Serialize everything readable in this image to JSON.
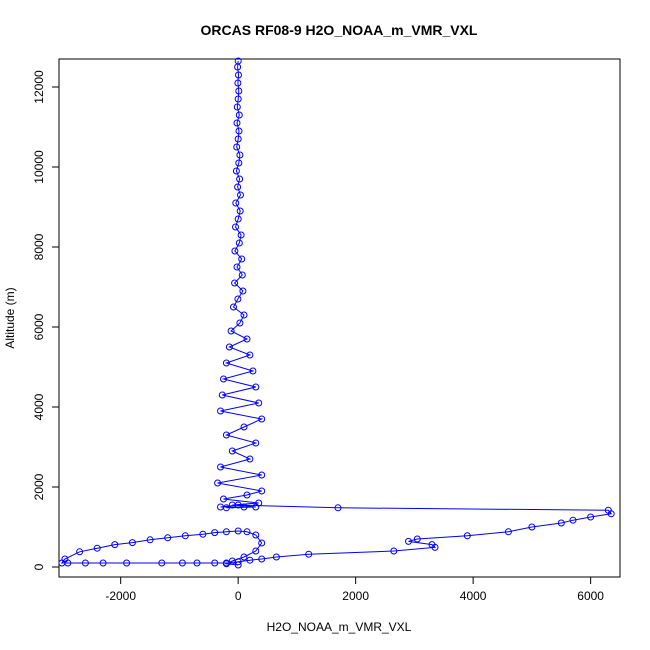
{
  "chart_data": {
    "type": "scatter",
    "title": "ORCAS RF08-9 H2O_NOAA_m_VMR_VXL",
    "xlabel": "H2O_NOAA_m_VMR_VXL",
    "ylabel": "Altitude (m)",
    "xlim": [
      -3050,
      6500
    ],
    "ylim": [
      -250,
      12700
    ],
    "x_ticks": [
      -2000,
      0,
      2000,
      4000,
      6000
    ],
    "x_tick_labels": [
      "-2000",
      "0",
      "2000",
      "4000",
      "6000"
    ],
    "y_ticks": [
      0,
      2000,
      4000,
      6000,
      8000,
      10000,
      12000
    ],
    "y_tick_labels": [
      "0",
      "2000",
      "4000",
      "6000",
      "8000",
      "10000",
      "12000"
    ],
    "grid": false,
    "legend": "none",
    "series": [
      {
        "marker": "open-circle",
        "line": true,
        "color": "#0000ff",
        "x": [
          0,
          -10,
          5,
          -5,
          10,
          0,
          -15,
          20,
          -20,
          15,
          0,
          -25,
          30,
          10,
          -30,
          25,
          -10,
          40,
          -40,
          35,
          0,
          -45,
          50,
          20,
          -55,
          60,
          -20,
          70,
          -60,
          80,
          -5,
          -80,
          100,
          30,
          -120,
          150,
          -150,
          200,
          -200,
          250,
          -250,
          300,
          -270,
          350,
          -300,
          400,
          100,
          -200,
          300,
          -100,
          200,
          -300,
          400,
          -350,
          400,
          150,
          -250,
          350,
          -100,
          300,
          -200,
          100,
          -300,
          0,
          1700,
          6300,
          6350,
          6000,
          5700,
          5500,
          5000,
          4600,
          3900,
          3050,
          2900,
          3300,
          3350,
          2650,
          1200,
          650,
          400,
          200,
          0,
          -200,
          -400,
          -700,
          -950,
          -1300,
          -1900,
          -2300,
          -2600,
          -2900,
          -3000,
          -2950,
          -2700,
          -2400,
          -2100,
          -1800,
          -1500,
          -1200,
          -900,
          -600,
          -400,
          -200,
          0,
          150,
          300,
          400,
          300,
          100,
          -100,
          -200,
          0
        ],
        "y": [
          12650,
          12500,
          12300,
          12100,
          11900,
          11700,
          11500,
          11300,
          11100,
          10900,
          10700,
          10500,
          10300,
          10100,
          9900,
          9700,
          9500,
          9300,
          9100,
          8900,
          8700,
          8500,
          8300,
          8100,
          7900,
          7700,
          7500,
          7300,
          7100,
          6900,
          6700,
          6500,
          6300,
          6100,
          5900,
          5700,
          5500,
          5300,
          5100,
          4900,
          4700,
          4500,
          4300,
          4100,
          3900,
          3700,
          3500,
          3300,
          3100,
          2900,
          2700,
          2500,
          2300,
          2100,
          1900,
          1800,
          1700,
          1600,
          1550,
          1500,
          1480,
          1500,
          1500,
          1550,
          1480,
          1420,
          1330,
          1250,
          1170,
          1100,
          1000,
          880,
          780,
          700,
          640,
          560,
          490,
          400,
          320,
          250,
          200,
          170,
          130,
          100,
          100,
          100,
          100,
          100,
          100,
          100,
          100,
          100,
          100,
          200,
          380,
          470,
          560,
          610,
          680,
          730,
          780,
          820,
          860,
          880,
          900,
          880,
          800,
          600,
          400,
          250,
          150,
          80,
          50
        ]
      }
    ]
  }
}
